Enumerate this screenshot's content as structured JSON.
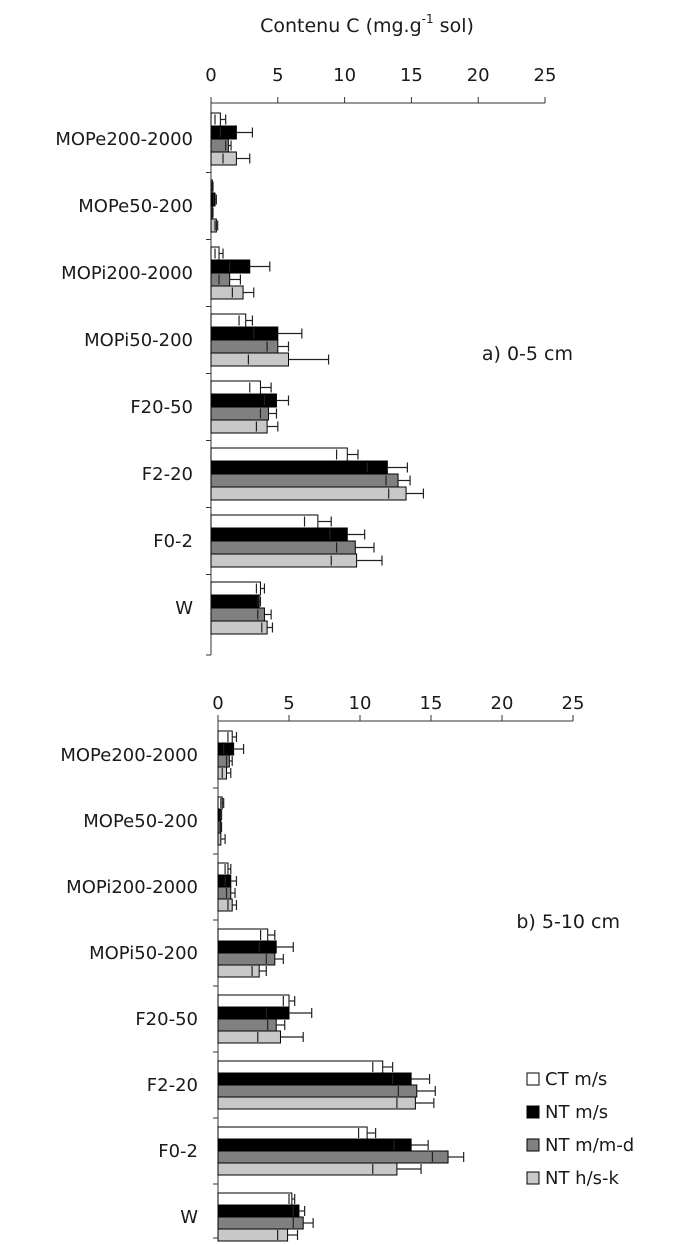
{
  "chart_data": {
    "type": "bar",
    "orientation": "horizontal",
    "title": "Contenu C (mg.g-1 sol)",
    "title_parts": {
      "main": "Contenu C (mg.g",
      "superscript": "-1",
      "tail": " sol)"
    },
    "xlim": [
      0,
      25
    ],
    "x_ticks": [
      "0",
      "5",
      "10",
      "15",
      "20",
      "25"
    ],
    "categories": [
      "MOPe200-2000",
      "MOPe50-200",
      "MOPi200-2000",
      "MOPi50-200",
      "F20-50",
      "F2-20",
      "F0-2",
      "W"
    ],
    "colors": {
      "CT m/s": "#ffffff",
      "NT m/s": "#000000",
      "NT m/m-d": "#808080",
      "NT h/s-k": "#c8c8c8"
    },
    "panels": [
      {
        "label": "a)  0-5 cm",
        "series": [
          {
            "name": "CT m/s",
            "values": [
              0.7,
              0.1,
              0.6,
              2.6,
              3.7,
              10.2,
              8.0,
              3.7
            ],
            "errors": [
              0.4,
              0.05,
              0.3,
              0.5,
              0.8,
              0.8,
              1.0,
              0.3
            ]
          },
          {
            "name": "NT m/s",
            "values": [
              1.9,
              0.3,
              2.9,
              5.0,
              4.9,
              13.2,
              10.2,
              3.6
            ],
            "errors": [
              1.2,
              0.1,
              1.5,
              1.8,
              0.9,
              1.5,
              1.3,
              0.1
            ]
          },
          {
            "name": "NT m/m-d",
            "values": [
              1.3,
              0.1,
              1.4,
              5.0,
              4.3,
              14.0,
              10.8,
              4.0
            ],
            "errors": [
              0.2,
              0.05,
              0.8,
              0.8,
              0.6,
              0.9,
              1.4,
              0.5
            ]
          },
          {
            "name": "NT h/s-k",
            "values": [
              1.9,
              0.4,
              2.4,
              5.8,
              4.2,
              14.6,
              10.9,
              4.2
            ],
            "errors": [
              1.0,
              0.1,
              0.8,
              3.0,
              0.8,
              1.3,
              1.9,
              0.4
            ]
          }
        ]
      },
      {
        "label": "b)  5-10 cm",
        "series": [
          {
            "name": "CT m/s",
            "values": [
              1.0,
              0.3,
              0.7,
              3.5,
              5.0,
              11.6,
              10.5,
              5.2
            ],
            "errors": [
              0.3,
              0.1,
              0.2,
              0.5,
              0.4,
              0.7,
              0.6,
              0.2
            ]
          },
          {
            "name": "NT m/s",
            "values": [
              1.1,
              0.2,
              0.9,
              4.1,
              5.0,
              13.6,
              13.6,
              5.7
            ],
            "errors": [
              0.7,
              0.05,
              0.4,
              1.2,
              1.6,
              1.3,
              1.2,
              0.4
            ]
          },
          {
            "name": "NT m/m-d",
            "values": [
              0.8,
              0.2,
              0.9,
              4.0,
              4.1,
              14.0,
              16.2,
              6.0
            ],
            "errors": [
              0.2,
              0.05,
              0.3,
              0.6,
              0.6,
              1.3,
              1.1,
              0.7
            ]
          },
          {
            "name": "NT h/s-k",
            "values": [
              0.6,
              0.2,
              1.0,
              2.9,
              4.4,
              13.9,
              12.6,
              4.9
            ],
            "errors": [
              0.3,
              0.3,
              0.3,
              0.5,
              1.6,
              1.3,
              1.7,
              0.7
            ]
          }
        ]
      }
    ],
    "legend": [
      "CT m/s",
      "NT m/s",
      "NT m/m-d",
      "NT h/s-k"
    ],
    "legend_position": "bottom-right",
    "grid": false
  }
}
